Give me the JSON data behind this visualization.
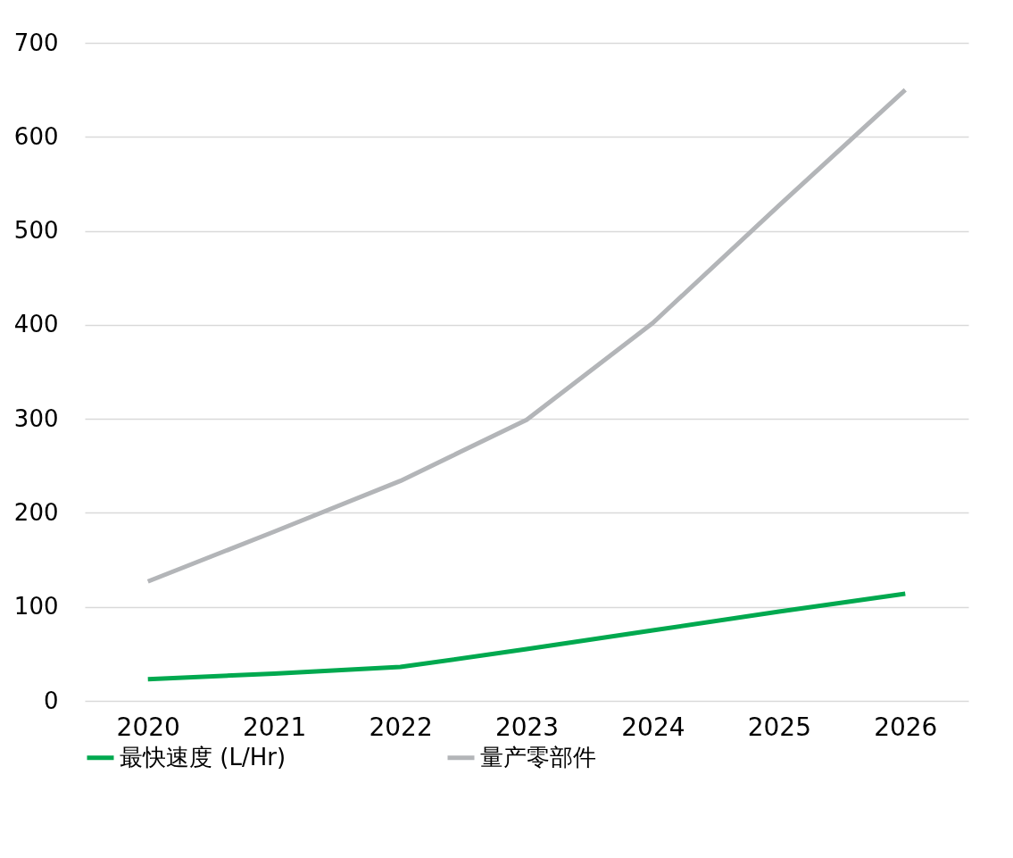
{
  "chart_data": {
    "type": "line",
    "categories": [
      "2020",
      "2021",
      "2022",
      "2023",
      "2024",
      "2025",
      "2026"
    ],
    "series": [
      {
        "name": "最快速度 (L/Hr)",
        "color": "#00a94f",
        "values": [
          23,
          29,
          36,
          55,
          75,
          95,
          114
        ]
      },
      {
        "name": "量产零部件",
        "color": "#b3b5b8",
        "values": [
          127,
          180,
          234,
          299,
          402,
          527,
          650
        ]
      }
    ],
    "ylim": [
      0,
      700
    ],
    "yticks": [
      0,
      100,
      200,
      300,
      400,
      500,
      600,
      700
    ],
    "grid": "y",
    "legend": "bottom"
  }
}
